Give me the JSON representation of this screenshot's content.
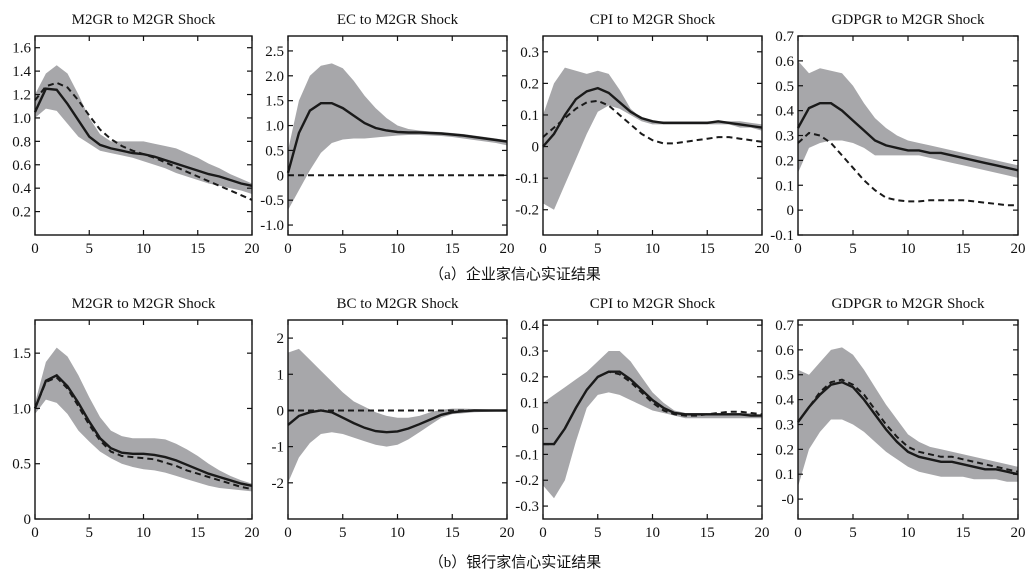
{
  "colors": {
    "band": "#a7a7aa",
    "line": "#1a1a1a",
    "axis": "#111111",
    "background": "#ffffff"
  },
  "captions": [
    "（a）企业家信心实证结果",
    "（b）银行家信心实证结果"
  ],
  "chart_data": [
    {
      "type": "line",
      "title": "M2GR to M2GR Shock",
      "x": [
        0,
        1,
        2,
        3,
        4,
        5,
        6,
        7,
        8,
        9,
        10,
        11,
        12,
        13,
        14,
        15,
        16,
        17,
        18,
        19,
        20
      ],
      "xlim": [
        0,
        20
      ],
      "ylim": [
        0,
        1.7
      ],
      "xticks": [
        "0",
        "5",
        "10",
        "15",
        "20"
      ],
      "xtick_values": [
        0,
        5,
        10,
        15,
        20
      ],
      "yticks": [
        "0.2",
        "0.4",
        "0.6",
        "0.8",
        "1.0",
        "1.2",
        "1.4",
        "1.6"
      ],
      "ytick_values": [
        0.2,
        0.4,
        0.6,
        0.8,
        1.0,
        1.2,
        1.4,
        1.6
      ],
      "band_upper": [
        1.2,
        1.38,
        1.45,
        1.38,
        1.2,
        1.0,
        0.86,
        0.8,
        0.8,
        0.8,
        0.8,
        0.78,
        0.76,
        0.74,
        0.7,
        0.66,
        0.61,
        0.57,
        0.52,
        0.48,
        0.44
      ],
      "band_lower": [
        1.0,
        1.08,
        1.06,
        0.95,
        0.84,
        0.78,
        0.72,
        0.7,
        0.68,
        0.66,
        0.63,
        0.6,
        0.57,
        0.53,
        0.5,
        0.47,
        0.44,
        0.42,
        0.4,
        0.38,
        0.35
      ],
      "irf": [
        1.05,
        1.25,
        1.24,
        1.12,
        0.98,
        0.84,
        0.77,
        0.74,
        0.72,
        0.7,
        0.69,
        0.67,
        0.64,
        0.61,
        0.58,
        0.55,
        0.52,
        0.5,
        0.47,
        0.44,
        0.42
      ],
      "comparison": [
        1.15,
        1.27,
        1.3,
        1.26,
        1.15,
        1.02,
        0.9,
        0.82,
        0.76,
        0.72,
        0.69,
        0.66,
        0.62,
        0.58,
        0.54,
        0.5,
        0.46,
        0.42,
        0.38,
        0.34,
        0.3
      ]
    },
    {
      "type": "line",
      "title": "EC to M2GR Shock",
      "x": [
        0,
        1,
        2,
        3,
        4,
        5,
        6,
        7,
        8,
        9,
        10,
        11,
        12,
        13,
        14,
        15,
        16,
        17,
        18,
        19,
        20
      ],
      "xlim": [
        0,
        20
      ],
      "ylim": [
        -1.2,
        2.8
      ],
      "xticks": [
        "0",
        "5",
        "10",
        "15",
        "20"
      ],
      "xtick_values": [
        0,
        5,
        10,
        15,
        20
      ],
      "yticks": [
        "-1.0",
        "-0.5",
        "0",
        "0.5",
        "1.0",
        "1.5",
        "2.0",
        "2.5"
      ],
      "ytick_values": [
        -1.0,
        -0.5,
        0,
        0.5,
        1.0,
        1.5,
        2.0,
        2.5
      ],
      "band_upper": [
        0.5,
        1.5,
        2.0,
        2.2,
        2.25,
        2.15,
        1.9,
        1.6,
        1.35,
        1.15,
        1.0,
        0.93,
        0.9,
        0.88,
        0.87,
        0.85,
        0.83,
        0.8,
        0.77,
        0.74,
        0.7
      ],
      "band_lower": [
        -0.7,
        -0.3,
        0.1,
        0.45,
        0.65,
        0.72,
        0.74,
        0.74,
        0.76,
        0.78,
        0.8,
        0.81,
        0.81,
        0.8,
        0.79,
        0.77,
        0.74,
        0.71,
        0.68,
        0.65,
        0.6
      ],
      "irf": [
        0.05,
        0.85,
        1.3,
        1.45,
        1.45,
        1.35,
        1.2,
        1.05,
        0.95,
        0.9,
        0.87,
        0.86,
        0.86,
        0.85,
        0.84,
        0.82,
        0.8,
        0.77,
        0.74,
        0.71,
        0.68
      ],
      "comparison": [
        0,
        0,
        0,
        0,
        0,
        0,
        0,
        0,
        0,
        0,
        0,
        0,
        0,
        0,
        0,
        0,
        0,
        0,
        0,
        0,
        0
      ]
    },
    {
      "type": "line",
      "title": "CPI to M2GR Shock",
      "x": [
        0,
        1,
        2,
        3,
        4,
        5,
        6,
        7,
        8,
        9,
        10,
        11,
        12,
        13,
        14,
        15,
        16,
        17,
        18,
        19,
        20
      ],
      "xlim": [
        0,
        20
      ],
      "ylim": [
        -0.28,
        0.35
      ],
      "xticks": [
        "0",
        "5",
        "10",
        "15",
        "20"
      ],
      "xtick_values": [
        0,
        5,
        10,
        15,
        20
      ],
      "yticks": [
        "-0.2",
        "-0.1",
        "0",
        "0.1",
        "0.2",
        "0.3"
      ],
      "ytick_values": [
        -0.2,
        -0.1,
        0,
        0.1,
        0.2,
        0.3
      ],
      "band_upper": [
        0.1,
        0.2,
        0.25,
        0.24,
        0.23,
        0.24,
        0.23,
        0.18,
        0.12,
        0.09,
        0.08,
        0.08,
        0.08,
        0.08,
        0.08,
        0.08,
        0.08,
        0.08,
        0.08,
        0.075,
        0.07
      ],
      "band_lower": [
        -0.18,
        -0.2,
        -0.12,
        -0.04,
        0.04,
        0.11,
        0.13,
        0.12,
        0.1,
        0.08,
        0.07,
        0.07,
        0.07,
        0.07,
        0.07,
        0.07,
        0.07,
        0.07,
        0.06,
        0.06,
        0.05
      ],
      "irf": [
        0,
        0.04,
        0.1,
        0.15,
        0.175,
        0.185,
        0.17,
        0.14,
        0.11,
        0.09,
        0.08,
        0.075,
        0.075,
        0.075,
        0.075,
        0.075,
        0.08,
        0.075,
        0.07,
        0.065,
        0.06
      ],
      "comparison": [
        0.03,
        0.06,
        0.09,
        0.12,
        0.14,
        0.145,
        0.13,
        0.1,
        0.07,
        0.04,
        0.02,
        0.01,
        0.01,
        0.015,
        0.02,
        0.025,
        0.03,
        0.03,
        0.025,
        0.02,
        0.015
      ]
    },
    {
      "type": "line",
      "title": "GDPGR to M2GR Shock",
      "x": [
        0,
        1,
        2,
        3,
        4,
        5,
        6,
        7,
        8,
        9,
        10,
        11,
        12,
        13,
        14,
        15,
        16,
        17,
        18,
        19,
        20
      ],
      "xlim": [
        0,
        20
      ],
      "ylim": [
        -0.1,
        0.7
      ],
      "xticks": [
        "0",
        "5",
        "10",
        "15",
        "20"
      ],
      "xtick_values": [
        0,
        5,
        10,
        15,
        20
      ],
      "yticks": [
        "-0.1",
        "0",
        "0.1",
        "0.2",
        "0.3",
        "0.4",
        "0.5",
        "0.6",
        "0.7"
      ],
      "ytick_values": [
        -0.1,
        0,
        0.1,
        0.2,
        0.3,
        0.4,
        0.5,
        0.6,
        0.7
      ],
      "band_upper": [
        0.6,
        0.55,
        0.57,
        0.56,
        0.55,
        0.5,
        0.43,
        0.37,
        0.33,
        0.3,
        0.28,
        0.27,
        0.26,
        0.25,
        0.24,
        0.23,
        0.22,
        0.21,
        0.2,
        0.19,
        0.18
      ],
      "band_lower": [
        0.15,
        0.25,
        0.27,
        0.28,
        0.28,
        0.27,
        0.25,
        0.22,
        0.22,
        0.22,
        0.22,
        0.22,
        0.21,
        0.2,
        0.19,
        0.18,
        0.17,
        0.16,
        0.15,
        0.14,
        0.13
      ],
      "irf": [
        0.33,
        0.41,
        0.43,
        0.43,
        0.4,
        0.36,
        0.32,
        0.28,
        0.26,
        0.25,
        0.24,
        0.24,
        0.23,
        0.23,
        0.22,
        0.21,
        0.2,
        0.19,
        0.18,
        0.17,
        0.16
      ],
      "comparison": [
        0.27,
        0.31,
        0.3,
        0.27,
        0.22,
        0.17,
        0.12,
        0.08,
        0.05,
        0.04,
        0.035,
        0.035,
        0.04,
        0.04,
        0.04,
        0.04,
        0.035,
        0.03,
        0.025,
        0.02,
        0.02
      ]
    },
    {
      "type": "line",
      "title": "M2GR to M2GR Shock",
      "x": [
        0,
        1,
        2,
        3,
        4,
        5,
        6,
        7,
        8,
        9,
        10,
        11,
        12,
        13,
        14,
        15,
        16,
        17,
        18,
        19,
        20
      ],
      "xlim": [
        0,
        20
      ],
      "ylim": [
        0,
        1.8
      ],
      "xticks": [
        "0",
        "5",
        "10",
        "15",
        "20"
      ],
      "xtick_values": [
        0,
        5,
        10,
        15,
        20
      ],
      "yticks": [
        "0",
        "0.5",
        "1.0",
        "1.5"
      ],
      "ytick_values": [
        0,
        0.5,
        1.0,
        1.5
      ],
      "band_upper": [
        1.05,
        1.42,
        1.55,
        1.47,
        1.3,
        1.1,
        0.92,
        0.8,
        0.75,
        0.73,
        0.73,
        0.73,
        0.72,
        0.68,
        0.63,
        0.57,
        0.5,
        0.44,
        0.39,
        0.35,
        0.32
      ],
      "band_lower": [
        0.95,
        1.08,
        1.05,
        0.95,
        0.8,
        0.7,
        0.61,
        0.55,
        0.5,
        0.47,
        0.45,
        0.44,
        0.42,
        0.39,
        0.36,
        0.33,
        0.3,
        0.28,
        0.27,
        0.26,
        0.25
      ],
      "irf": [
        1.0,
        1.25,
        1.3,
        1.2,
        1.05,
        0.88,
        0.73,
        0.64,
        0.6,
        0.59,
        0.59,
        0.58,
        0.56,
        0.53,
        0.49,
        0.45,
        0.41,
        0.38,
        0.35,
        0.32,
        0.3
      ],
      "comparison": [
        1.0,
        1.24,
        1.28,
        1.18,
        1.02,
        0.85,
        0.71,
        0.61,
        0.57,
        0.56,
        0.55,
        0.54,
        0.51,
        0.48,
        0.44,
        0.41,
        0.38,
        0.35,
        0.32,
        0.29,
        0.27
      ]
    },
    {
      "type": "line",
      "title": "BC to M2GR Shock",
      "x": [
        0,
        1,
        2,
        3,
        4,
        5,
        6,
        7,
        8,
        9,
        10,
        11,
        12,
        13,
        14,
        15,
        16,
        17,
        18,
        19,
        20
      ],
      "xlim": [
        0,
        20
      ],
      "ylim": [
        -3.0,
        2.5
      ],
      "xticks": [
        "0",
        "5",
        "10",
        "15",
        "20"
      ],
      "xtick_values": [
        0,
        5,
        10,
        15,
        20
      ],
      "yticks": [
        "-2",
        "-1",
        "0",
        "1",
        "2"
      ],
      "ytick_values": [
        -2,
        -1,
        0,
        1,
        2
      ],
      "band_upper": [
        1.6,
        1.7,
        1.4,
        1.1,
        0.8,
        0.5,
        0.25,
        0.1,
        -0.05,
        -0.15,
        -0.2,
        -0.2,
        -0.15,
        -0.05,
        0.02,
        0.05,
        0.05,
        0.04,
        0.03,
        0.02,
        0.0
      ],
      "band_lower": [
        -2.0,
        -1.3,
        -0.9,
        -0.65,
        -0.6,
        -0.65,
        -0.75,
        -0.85,
        -0.95,
        -1.0,
        -0.95,
        -0.8,
        -0.6,
        -0.4,
        -0.2,
        -0.1,
        -0.08,
        -0.05,
        -0.04,
        -0.03,
        -0.03
      ],
      "irf": [
        -0.4,
        -0.15,
        -0.05,
        0.0,
        -0.05,
        -0.2,
        -0.35,
        -0.48,
        -0.57,
        -0.6,
        -0.58,
        -0.5,
        -0.38,
        -0.25,
        -0.12,
        -0.05,
        -0.02,
        0,
        0,
        0,
        0
      ],
      "comparison": [
        0,
        0,
        0,
        0,
        0,
        0,
        0,
        0,
        0,
        0,
        0,
        0,
        0,
        0,
        0,
        0,
        0,
        0,
        0,
        0,
        0
      ]
    },
    {
      "type": "line",
      "title": "CPI to M2GR Shock",
      "x": [
        0,
        1,
        2,
        3,
        4,
        5,
        6,
        7,
        8,
        9,
        10,
        11,
        12,
        13,
        14,
        15,
        16,
        17,
        18,
        19,
        20
      ],
      "xlim": [
        0,
        20
      ],
      "ylim": [
        -0.35,
        0.42
      ],
      "xticks": [
        "0",
        "5",
        "10",
        "15",
        "20"
      ],
      "xtick_values": [
        0,
        5,
        10,
        15,
        20
      ],
      "yticks": [
        "-0.3",
        "-0.2",
        "-0.1",
        "0",
        "0.1",
        "0.2",
        "0.3",
        "0.4"
      ],
      "ytick_values": [
        -0.3,
        -0.2,
        -0.1,
        0,
        0.1,
        0.2,
        0.3,
        0.4
      ],
      "band_upper": [
        0.1,
        0.13,
        0.16,
        0.19,
        0.22,
        0.26,
        0.3,
        0.3,
        0.26,
        0.2,
        0.14,
        0.1,
        0.07,
        0.06,
        0.06,
        0.06,
        0.06,
        0.06,
        0.06,
        0.06,
        0.05
      ],
      "band_lower": [
        -0.22,
        -0.27,
        -0.2,
        -0.05,
        0.08,
        0.13,
        0.14,
        0.13,
        0.11,
        0.09,
        0.07,
        0.06,
        0.05,
        0.04,
        0.04,
        0.04,
        0.04,
        0.04,
        0.04,
        0.04,
        0.04
      ],
      "irf": [
        -0.06,
        -0.06,
        0.0,
        0.08,
        0.15,
        0.2,
        0.22,
        0.22,
        0.19,
        0.15,
        0.11,
        0.08,
        0.06,
        0.055,
        0.055,
        0.055,
        0.055,
        0.055,
        0.055,
        0.05,
        0.05
      ],
      "comparison": [
        -0.06,
        -0.06,
        0.0,
        0.08,
        0.15,
        0.2,
        0.22,
        0.21,
        0.18,
        0.14,
        0.1,
        0.07,
        0.055,
        0.05,
        0.05,
        0.055,
        0.06,
        0.065,
        0.065,
        0.06,
        0.055
      ]
    },
    {
      "type": "line",
      "title": "GDPGR to M2GR Shock",
      "x": [
        0,
        1,
        2,
        3,
        4,
        5,
        6,
        7,
        8,
        9,
        10,
        11,
        12,
        13,
        14,
        15,
        16,
        17,
        18,
        19,
        20
      ],
      "xlim": [
        0,
        20
      ],
      "ylim": [
        -0.08,
        0.72
      ],
      "xticks": [
        "0",
        "5",
        "10",
        "15",
        "20"
      ],
      "xtick_values": [
        0,
        5,
        10,
        15,
        20
      ],
      "yticks": [
        "-0",
        "0.1",
        "0.2",
        "0.3",
        "0.4",
        "0.5",
        "0.6",
        "0.7"
      ],
      "ytick_values": [
        0,
        0.1,
        0.2,
        0.3,
        0.4,
        0.5,
        0.6,
        0.7
      ],
      "band_upper": [
        0.52,
        0.5,
        0.55,
        0.6,
        0.61,
        0.58,
        0.52,
        0.45,
        0.38,
        0.32,
        0.26,
        0.23,
        0.21,
        0.2,
        0.19,
        0.18,
        0.17,
        0.16,
        0.15,
        0.14,
        0.13
      ],
      "band_lower": [
        0.05,
        0.2,
        0.27,
        0.32,
        0.32,
        0.3,
        0.27,
        0.23,
        0.19,
        0.16,
        0.13,
        0.11,
        0.1,
        0.09,
        0.09,
        0.09,
        0.08,
        0.08,
        0.08,
        0.07,
        0.07
      ],
      "irf": [
        0.31,
        0.37,
        0.42,
        0.46,
        0.47,
        0.45,
        0.4,
        0.34,
        0.28,
        0.23,
        0.19,
        0.17,
        0.16,
        0.15,
        0.15,
        0.14,
        0.13,
        0.12,
        0.12,
        0.11,
        0.1
      ],
      "comparison": [
        0.31,
        0.37,
        0.43,
        0.47,
        0.48,
        0.46,
        0.42,
        0.36,
        0.3,
        0.25,
        0.21,
        0.19,
        0.18,
        0.17,
        0.17,
        0.16,
        0.15,
        0.14,
        0.13,
        0.12,
        0.11
      ]
    }
  ]
}
